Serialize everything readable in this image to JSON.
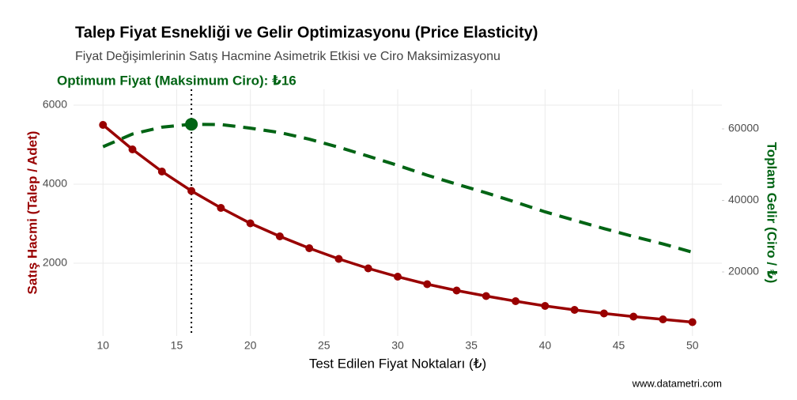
{
  "chart_data": {
    "type": "line",
    "title": "Talep Fiyat Esnekliği ve Gelir Optimizasyonu (Price Elasticity)",
    "subtitle": "Fiyat Değişimlerinin Satış Hacmine Asimetrik Etkisi ve Ciro Maksimizasyonu",
    "x_label": "Test Edilen Fiyat Noktaları (₺)",
    "y_label": "Satış Hacmi (Talep / Adet)",
    "y2_label": "Toplam Gelir (Ciro / ₺)",
    "caption": "www.datametri.com",
    "x": [
      10,
      12,
      14,
      16,
      18,
      20,
      22,
      24,
      26,
      28,
      30,
      32,
      34,
      36,
      38,
      40,
      42,
      44,
      46,
      48,
      50
    ],
    "series": [
      {
        "color": "#990000",
        "axis": "y",
        "style": "solid",
        "values": [
          5500,
          4880,
          4320,
          3830,
          3400,
          3010,
          2680,
          2380,
          2110,
          1870,
          1660,
          1470,
          1310,
          1170,
          1040,
          920,
          820,
          730,
          650,
          580,
          510
        ]
      },
      {
        "color": "#006414",
        "axis": "y2",
        "style": "dashed",
        "values": [
          55000,
          58560,
          60480,
          61280,
          61200,
          60200,
          58960,
          57120,
          54860,
          52360,
          49800,
          47040,
          44540,
          42120,
          39520,
          36800,
          34440,
          32120,
          29900,
          27840,
          25500
        ]
      }
    ],
    "optimum": {
      "label": "Optimum Fiyat (Maksimum Ciro): ₺16",
      "x": 16,
      "color": "#006414"
    },
    "xlim": [
      8,
      52
    ],
    "xticks": [
      10,
      15,
      20,
      25,
      30,
      35,
      40,
      45,
      50
    ],
    "ylim": [
      160,
      6400
    ],
    "yticks": [
      2000,
      4000,
      6000
    ],
    "y2lim": [
      2100,
      71050
    ],
    "y2ticks": [
      20000,
      40000,
      60000
    ],
    "grid": true
  }
}
